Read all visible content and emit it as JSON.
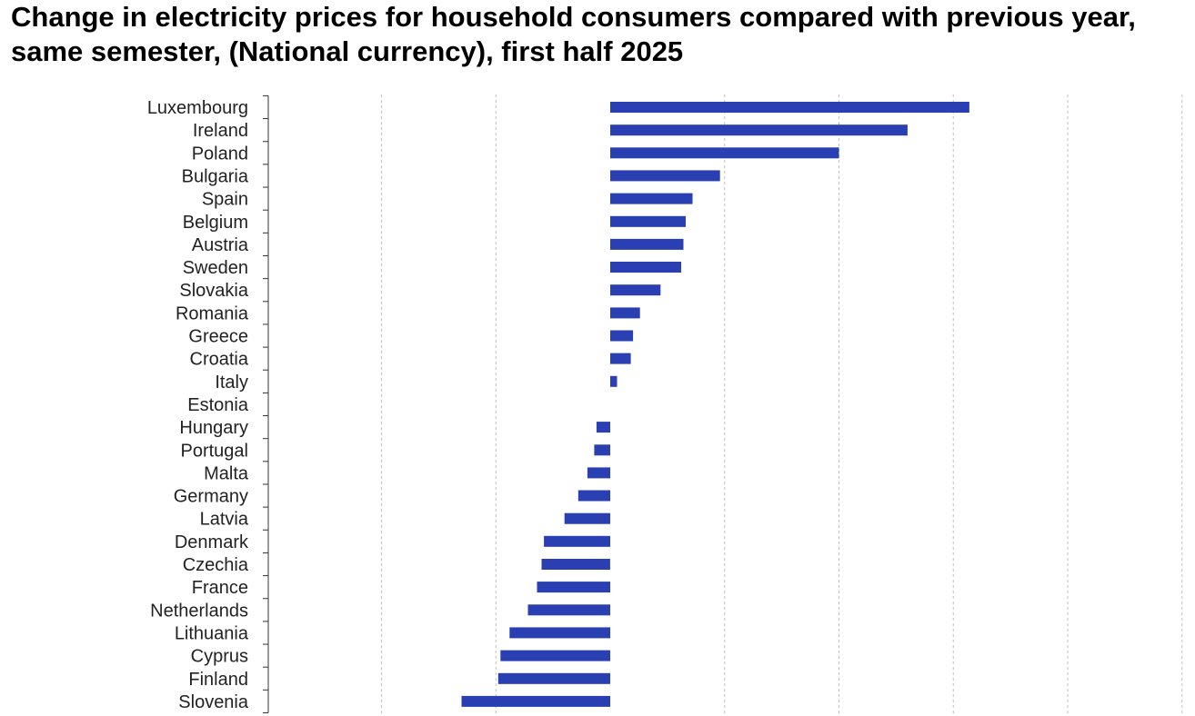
{
  "chart_data": {
    "type": "bar",
    "orientation": "horizontal",
    "title": "Change in electricity prices for household consumers compared with previous year, same semester, (National currency), first half 2025",
    "xlabel": "",
    "ylabel": "",
    "xlim": [
      -20,
      30
    ],
    "grid": true,
    "colors": {
      "bar": "#2a3fb1",
      "grid": "#bfbfbf",
      "axis": "#333333"
    },
    "categories": [
      "Luxembourg",
      "Ireland",
      "Poland",
      "Bulgaria",
      "Spain",
      "Belgium",
      "Austria",
      "Sweden",
      "Slovakia",
      "Romania",
      "Greece",
      "Croatia",
      "Italy",
      "Estonia",
      "Hungary",
      "Portugal",
      "Malta",
      "Germany",
      "Latvia",
      "Denmark",
      "Czechia",
      "France",
      "Netherlands",
      "Lithuania",
      "Cyprus",
      "Finland",
      "Slovenia"
    ],
    "values": [
      15.7,
      13.0,
      10.0,
      4.8,
      3.6,
      3.3,
      3.2,
      3.1,
      2.2,
      1.3,
      1.0,
      0.9,
      0.3,
      0.0,
      -0.6,
      -0.7,
      -1.0,
      -1.4,
      -2.0,
      -2.9,
      -3.0,
      -3.2,
      -3.6,
      -4.4,
      -4.8,
      -4.9,
      -6.5
    ]
  }
}
